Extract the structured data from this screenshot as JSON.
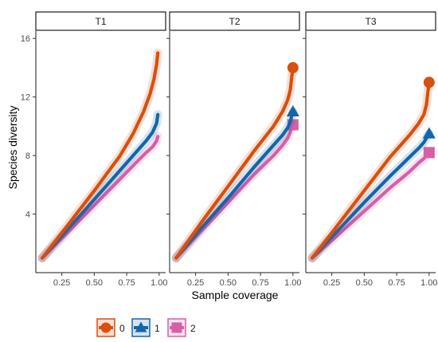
{
  "chart_data": {
    "type": "line",
    "xlabel": "Sample coverage",
    "ylabel": "Species diversity",
    "xlim": [
      0.05,
      1.05
    ],
    "ylim": [
      0,
      16.5
    ],
    "xticks": [
      0.25,
      0.5,
      0.75,
      1.0
    ],
    "xtick_labels": [
      "0.25",
      "0.50",
      "0.75",
      "1.00"
    ],
    "yticks": [
      4,
      8,
      12,
      16
    ],
    "ytick_labels": [
      "4",
      "8",
      "12",
      "16"
    ],
    "legend_position": "bottom",
    "colors": {
      "0": "#d94f0f",
      "1": "#1565a8",
      "2": "#d660a6"
    },
    "panels": [
      {
        "title": "T1",
        "series": [
          {
            "name": "0",
            "marker": "circle",
            "x": [
              0.1,
              0.3,
              0.5,
              0.7,
              0.8,
              0.88,
              0.93,
              0.96,
              0.98,
              0.99
            ],
            "y": [
              1,
              3.3,
              5.6,
              8.0,
              9.5,
              11.0,
              12.2,
              13.2,
              14.2,
              15.0
            ],
            "endpoint": null
          },
          {
            "name": "1",
            "marker": "triangle",
            "x": [
              0.1,
              0.3,
              0.5,
              0.7,
              0.82,
              0.9,
              0.95,
              0.98,
              0.99
            ],
            "y": [
              1,
              3.0,
              5.0,
              7.0,
              8.2,
              9.0,
              9.6,
              10.2,
              10.8
            ],
            "endpoint": null
          },
          {
            "name": "2",
            "marker": "square",
            "x": [
              0.1,
              0.3,
              0.5,
              0.7,
              0.82,
              0.9,
              0.95,
              0.98,
              0.99
            ],
            "y": [
              1,
              2.8,
              4.6,
              6.4,
              7.5,
              8.2,
              8.6,
              9.0,
              9.3
            ],
            "endpoint": null
          }
        ]
      },
      {
        "title": "T2",
        "series": [
          {
            "name": "0",
            "marker": "circle",
            "x": [
              0.1,
              0.3,
              0.5,
              0.7,
              0.85,
              0.92,
              0.96,
              0.98,
              0.99,
              1.0
            ],
            "y": [
              1,
              3.5,
              5.9,
              8.3,
              10.0,
              11.0,
              11.8,
              12.5,
              13.3,
              14.0
            ],
            "endpoint": [
              1.0,
              14.0
            ]
          },
          {
            "name": "1",
            "marker": "triangle",
            "x": [
              0.1,
              0.3,
              0.5,
              0.7,
              0.85,
              0.92,
              0.96,
              0.98,
              0.99,
              1.0
            ],
            "y": [
              1,
              3.1,
              5.1,
              7.2,
              8.7,
              9.4,
              9.9,
              10.3,
              10.7,
              11.0
            ],
            "endpoint": [
              1.0,
              11.0
            ]
          },
          {
            "name": "2",
            "marker": "square",
            "x": [
              0.1,
              0.3,
              0.5,
              0.7,
              0.85,
              0.92,
              0.96,
              0.98,
              0.99,
              1.0
            ],
            "y": [
              1,
              2.9,
              4.8,
              6.7,
              8.0,
              8.7,
              9.2,
              9.6,
              9.9,
              10.1
            ],
            "endpoint": [
              1.0,
              10.1
            ]
          }
        ]
      },
      {
        "title": "T3",
        "series": [
          {
            "name": "0",
            "marker": "circle",
            "x": [
              0.1,
              0.3,
              0.5,
              0.7,
              0.85,
              0.92,
              0.96,
              0.98,
              0.99,
              1.0
            ],
            "y": [
              1,
              3.3,
              5.6,
              7.9,
              9.4,
              10.2,
              10.8,
              11.5,
              12.3,
              13.0
            ],
            "endpoint": [
              1.0,
              13.0
            ]
          },
          {
            "name": "1",
            "marker": "triangle",
            "x": [
              0.1,
              0.3,
              0.5,
              0.7,
              0.85,
              0.92,
              0.96,
              0.98,
              0.99,
              1.0
            ],
            "y": [
              1,
              2.9,
              4.8,
              6.6,
              7.9,
              8.5,
              8.9,
              9.2,
              9.4,
              9.5
            ],
            "endpoint": [
              1.0,
              9.5
            ]
          },
          {
            "name": "2",
            "marker": "square",
            "x": [
              0.1,
              0.3,
              0.5,
              0.7,
              0.85,
              0.92,
              0.96,
              0.98,
              0.99,
              1.0
            ],
            "y": [
              1,
              2.6,
              4.2,
              5.8,
              6.9,
              7.5,
              7.8,
              8.0,
              8.1,
              8.2
            ],
            "endpoint": [
              1.0,
              8.2
            ]
          }
        ]
      }
    ]
  }
}
